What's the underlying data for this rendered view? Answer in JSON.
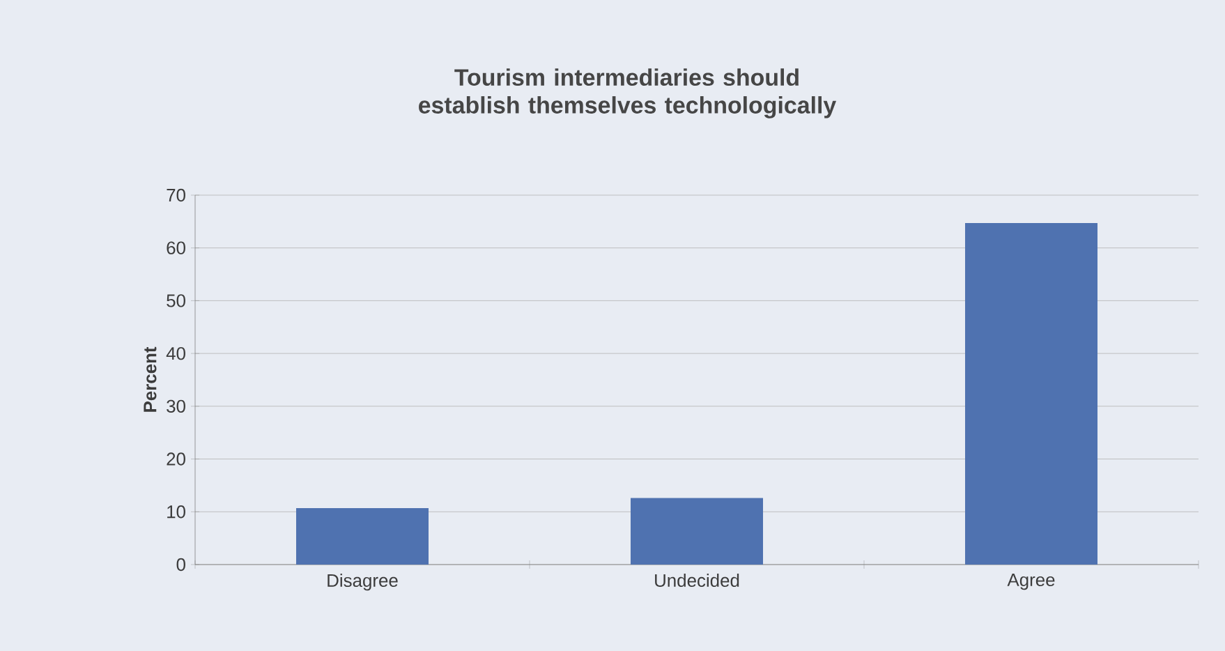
{
  "chart_data": {
    "type": "bar",
    "title": "Tourism intermediaries should establish themselves technologically",
    "ylabel": "Percent",
    "categories": [
      "Disagree",
      "Undecided",
      "Agree"
    ],
    "values": [
      10.7,
      12.6,
      64.7
    ],
    "color": "#4f72b0",
    "ylim": [
      0,
      70
    ],
    "yticks": [
      0,
      10,
      20,
      30,
      40,
      50,
      60,
      70
    ],
    "grid": "y"
  }
}
